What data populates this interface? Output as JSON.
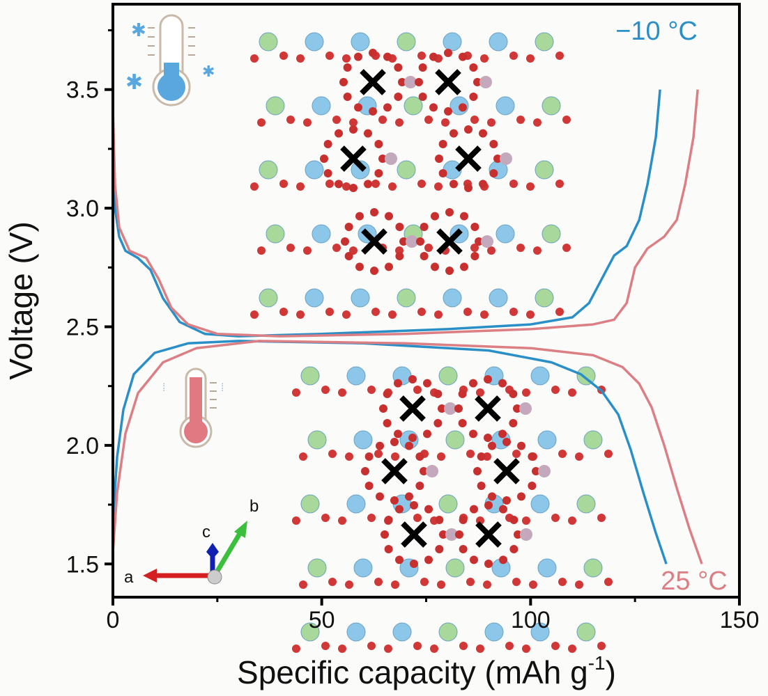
{
  "chart_data": {
    "type": "line",
    "title": "",
    "xlabel": "Specific capacity (mAh g",
    "xlabel_sup": "-1",
    "xlabel_end": ")",
    "ylabel": "Voltage (V)",
    "xlim": [
      0,
      150
    ],
    "ylim": [
      1.36,
      3.86
    ],
    "x_ticks": [
      "0",
      "50",
      "100",
      "150"
    ],
    "x_tick_values": [
      0,
      50,
      100,
      150
    ],
    "y_ticks": [
      "1.5",
      "2.0",
      "2.5",
      "3.0",
      "3.5"
    ],
    "y_tick_values": [
      1.5,
      2.0,
      2.5,
      3.0,
      3.5
    ],
    "grid": false,
    "labels": {
      "cold": "−10 °C",
      "warm": "25 °C"
    },
    "colors": {
      "cold": "#2a8fc7",
      "warm": "#dc7f84"
    },
    "series": [
      {
        "name": "−10 °C",
        "color": "#2a8fc7",
        "points": [
          [
            0,
            3.25
          ],
          [
            0.5,
            3.0
          ],
          [
            1.5,
            2.88
          ],
          [
            3,
            2.82
          ],
          [
            6,
            2.79
          ],
          [
            9,
            2.74
          ],
          [
            12,
            2.62
          ],
          [
            16,
            2.52
          ],
          [
            22,
            2.47
          ],
          [
            30,
            2.46
          ],
          [
            50,
            2.47
          ],
          [
            80,
            2.49
          ],
          [
            100,
            2.51
          ],
          [
            110,
            2.54
          ],
          [
            114,
            2.6
          ],
          [
            117,
            2.7
          ],
          [
            120,
            2.8
          ],
          [
            123,
            2.84
          ],
          [
            126,
            2.95
          ],
          [
            128,
            3.1
          ],
          [
            130,
            3.3
          ],
          [
            131,
            3.5
          ]
        ]
      },
      {
        "name": "25 °C",
        "color": "#dc7f84",
        "points": [
          [
            0,
            3.42
          ],
          [
            0.5,
            3.1
          ],
          [
            1.5,
            2.92
          ],
          [
            4,
            2.82
          ],
          [
            8,
            2.79
          ],
          [
            11,
            2.7
          ],
          [
            14,
            2.58
          ],
          [
            18,
            2.51
          ],
          [
            25,
            2.47
          ],
          [
            40,
            2.46
          ],
          [
            70,
            2.47
          ],
          [
            100,
            2.49
          ],
          [
            115,
            2.51
          ],
          [
            120,
            2.53
          ],
          [
            123,
            2.6
          ],
          [
            125,
            2.75
          ],
          [
            128,
            2.83
          ],
          [
            132,
            2.88
          ],
          [
            135,
            2.95
          ],
          [
            137,
            3.1
          ],
          [
            139,
            3.3
          ],
          [
            140,
            3.5
          ]
        ]
      },
      {
        "name": "−10 °C",
        "color": "#2a8fc7",
        "points": [
          [
            0,
            1.68
          ],
          [
            1,
            1.95
          ],
          [
            2.5,
            2.15
          ],
          [
            5,
            2.3
          ],
          [
            10,
            2.39
          ],
          [
            18,
            2.43
          ],
          [
            30,
            2.44
          ],
          [
            60,
            2.43
          ],
          [
            90,
            2.4
          ],
          [
            105,
            2.35
          ],
          [
            112,
            2.3
          ],
          [
            117,
            2.23
          ],
          [
            121,
            2.13
          ],
          [
            124,
            1.98
          ],
          [
            127,
            1.8
          ],
          [
            130,
            1.63
          ],
          [
            132.5,
            1.5
          ]
        ]
      },
      {
        "name": "25 °C",
        "color": "#dc7f84",
        "points": [
          [
            0,
            1.55
          ],
          [
            1,
            1.8
          ],
          [
            3,
            2.05
          ],
          [
            6,
            2.22
          ],
          [
            12,
            2.35
          ],
          [
            20,
            2.41
          ],
          [
            35,
            2.44
          ],
          [
            70,
            2.43
          ],
          [
            100,
            2.41
          ],
          [
            115,
            2.38
          ],
          [
            122,
            2.33
          ],
          [
            126,
            2.26
          ],
          [
            129,
            2.16
          ],
          [
            132,
            2.0
          ],
          [
            135,
            1.82
          ],
          [
            138,
            1.65
          ],
          [
            141,
            1.5
          ]
        ]
      }
    ]
  },
  "inset": {
    "axis_triad": {
      "a": "a",
      "b": "b",
      "c": "c"
    },
    "icons": [
      "cold-thermometer-icon",
      "warm-thermometer-icon"
    ]
  }
}
